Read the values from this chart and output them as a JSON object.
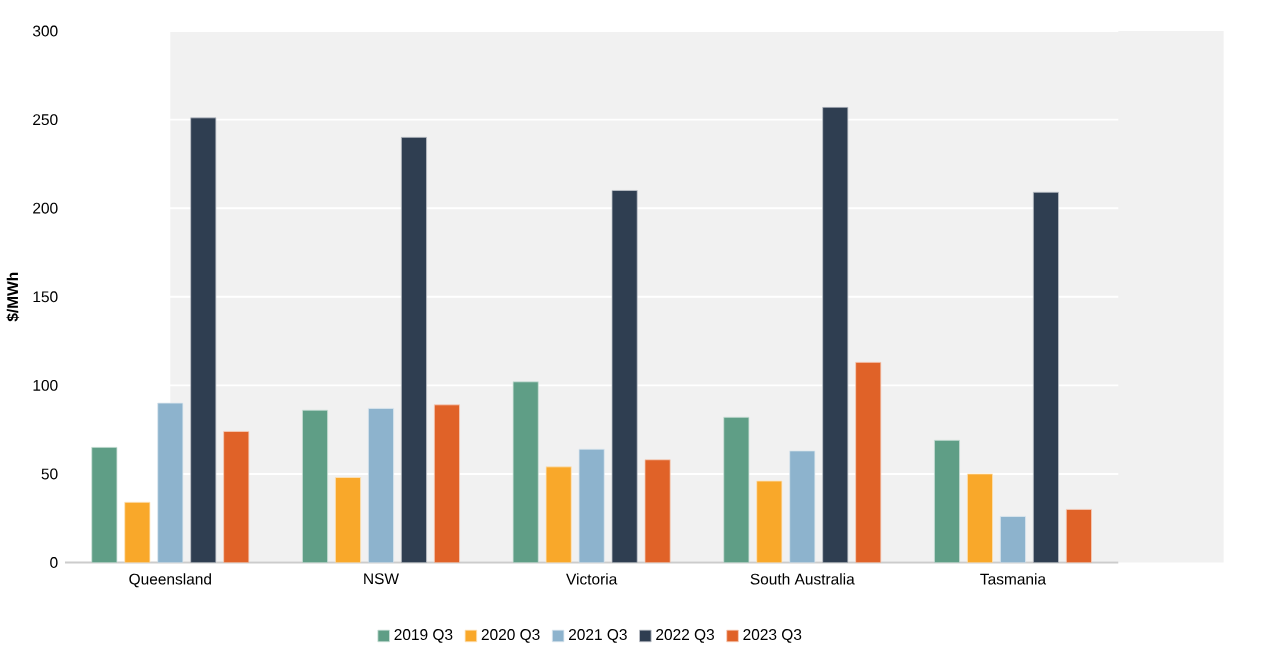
{
  "chart_data": {
    "type": "bar",
    "ylabel": "$/MWh",
    "categories": [
      "Queensland",
      "NSW",
      "Victoria",
      "South Australia",
      "Tasmania"
    ],
    "series": [
      {
        "name": "2019 Q3",
        "color": "#5f9e86",
        "values": [
          65,
          86,
          102,
          82,
          69
        ]
      },
      {
        "name": "2020 Q3",
        "color": "#f9a82a",
        "values": [
          34,
          48,
          54,
          46,
          50
        ]
      },
      {
        "name": "2021 Q3",
        "color": "#8db3cd",
        "values": [
          90,
          87,
          64,
          63,
          26
        ]
      },
      {
        "name": "2022 Q3",
        "color": "#2f3e51",
        "values": [
          251,
          240,
          210,
          257,
          209
        ]
      },
      {
        "name": "2023 Q3",
        "color": "#e06228",
        "values": [
          74,
          89,
          58,
          113,
          30
        ]
      }
    ],
    "ylim": [
      0,
      300
    ],
    "yticks": [
      0,
      50,
      100,
      150,
      200,
      250,
      300
    ],
    "grid": "y",
    "legend": "bottom"
  }
}
